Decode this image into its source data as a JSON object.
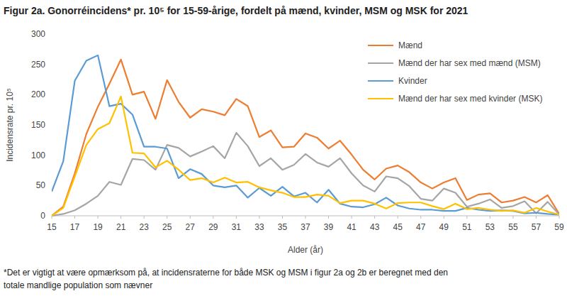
{
  "chart_data": {
    "type": "line",
    "title": "Figur 2a. Gonorréincidens* pr. 10⁵ for 15-59-årige, fordelt på mænd, kvinder, MSM og MSK for 2021",
    "x_label": "Alder (år)",
    "y_label": "Incidensrate pr. 10⁵",
    "footnote": [
      "*Det er vigtigt at være opmærksom på, at incidensraterne for både MSK og MSM i figur 2a og 2b er beregnet med den",
      "totale mandlige population som nævner"
    ],
    "x": [
      15,
      16,
      17,
      18,
      19,
      20,
      21,
      22,
      23,
      24,
      25,
      26,
      27,
      28,
      29,
      30,
      31,
      32,
      33,
      34,
      35,
      36,
      37,
      38,
      39,
      40,
      41,
      42,
      43,
      44,
      45,
      46,
      47,
      48,
      49,
      50,
      51,
      52,
      53,
      54,
      55,
      56,
      57,
      58,
      59
    ],
    "xlim": [
      15,
      59
    ],
    "xticks": [
      15,
      17,
      19,
      21,
      23,
      25,
      27,
      29,
      31,
      33,
      35,
      37,
      39,
      41,
      43,
      45,
      47,
      49,
      51,
      53,
      55,
      57,
      59
    ],
    "ylim": [
      0,
      300
    ],
    "yticks": [
      0,
      50,
      100,
      150,
      200,
      250,
      300
    ],
    "grid": false,
    "legend": "top-right",
    "series": [
      {
        "name": "Mænd",
        "color": "#ED7D31",
        "values": [
          0,
          15,
          70,
          135,
          180,
          218,
          258,
          200,
          205,
          160,
          224,
          188,
          162,
          176,
          172,
          166,
          193,
          181,
          130,
          141,
          113,
          114,
          136,
          129,
          111,
          124,
          101,
          76,
          60,
          78,
          83,
          72,
          55,
          45,
          55,
          62,
          26,
          35,
          37,
          22,
          25,
          31,
          22,
          34,
          3
        ]
      },
      {
        "name": "Mænd der har sex med mænd (MSM)",
        "color": "#A5A5A5",
        "values": [
          0,
          3,
          9,
          20,
          33,
          56,
          51,
          94,
          92,
          76,
          117,
          112,
          98,
          106,
          115,
          95,
          137,
          115,
          82,
          95,
          76,
          84,
          102,
          88,
          81,
          95,
          70,
          50,
          40,
          65,
          62,
          49,
          28,
          25,
          45,
          38,
          15,
          20,
          27,
          13,
          16,
          24,
          4,
          23,
          2
        ]
      },
      {
        "name": "Kvinder",
        "color": "#5B9BD5",
        "values": [
          40,
          90,
          223,
          256,
          265,
          181,
          185,
          167,
          114,
          114,
          111,
          62,
          77,
          69,
          50,
          47,
          50,
          30,
          46,
          33,
          48,
          32,
          38,
          22,
          43,
          20,
          15,
          14,
          19,
          30,
          17,
          12,
          10,
          10,
          8,
          8,
          13,
          10,
          8,
          9,
          8,
          4,
          5,
          3,
          2
        ]
      },
      {
        "name": "Mænd der har sex med kvinder (MSK)",
        "color": "#FFC000",
        "values": [
          0,
          13,
          65,
          117,
          143,
          153,
          197,
          104,
          103,
          80,
          91,
          76,
          59,
          62,
          55,
          63,
          55,
          56,
          47,
          42,
          38,
          31,
          31,
          35,
          33,
          21,
          25,
          25,
          20,
          12,
          21,
          22,
          22,
          16,
          11,
          20,
          11,
          13,
          10,
          8,
          9,
          5,
          13,
          7,
          2
        ]
      }
    ]
  }
}
